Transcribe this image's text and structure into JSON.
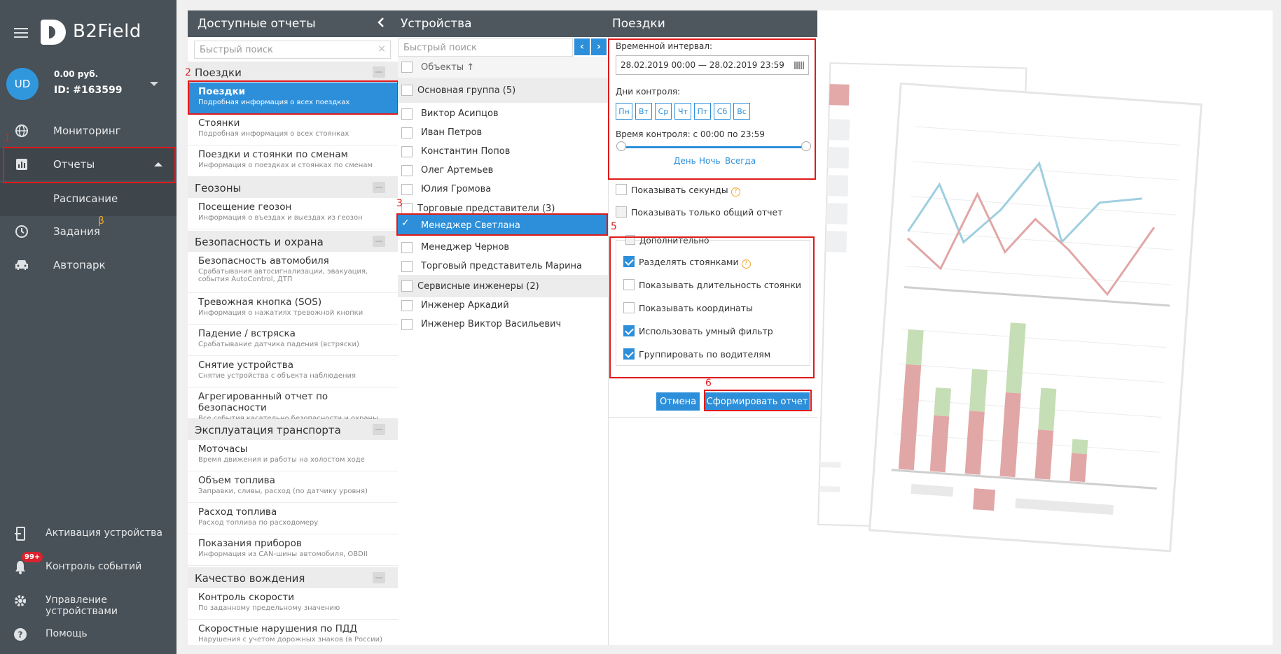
{
  "sidebar": {
    "logo": "B2Field",
    "avatar_initials": "UD",
    "balance": "0.00 руб.",
    "account_id": "ID: #163599",
    "nav": [
      {
        "label": "Мониторинг",
        "icon": "globe-icon"
      },
      {
        "label": "Отчеты",
        "icon": "bar-chart-icon"
      },
      {
        "label": "Расписание"
      },
      {
        "label": "Задания",
        "icon": "clock-icon",
        "beta": "β"
      },
      {
        "label": "Автопарк",
        "icon": "car-icon"
      }
    ],
    "bottom": [
      {
        "label": "Активация устройства",
        "icon": "device-activation-icon"
      },
      {
        "label": "Контроль событий",
        "icon": "bell-icon",
        "badge": "99+"
      },
      {
        "label": "Управление устройствами",
        "icon": "gear-icon"
      },
      {
        "label": "Помощь",
        "icon": "help-icon"
      }
    ]
  },
  "reports_panel": {
    "title": "Доступные отчеты",
    "search_placeholder": "Быстрый поиск",
    "groups": [
      {
        "title": "Поездки",
        "items": [
          {
            "title": "Поездки",
            "desc": "Подробная информация о всех поездках"
          },
          {
            "title": "Стоянки",
            "desc": "Подробная информация о всех стоянках"
          },
          {
            "title": "Поездки и стоянки по сменам",
            "desc": "Информация о поездках и стоянках по сменам"
          }
        ]
      },
      {
        "title": "Геозоны",
        "items": [
          {
            "title": "Посещение геозон",
            "desc": "Информация о въездах и выездах из геозон"
          }
        ]
      },
      {
        "title": "Безопасность и охрана",
        "items": [
          {
            "title": "Безопасность автомобиля",
            "desc": "Срабатывания автосигнализации, эвакуация,",
            "desc2": "события AutoControl, ДТП"
          },
          {
            "title": "Тревожная кнопка (SOS)",
            "desc": "Информация о нажатиях тревожной кнопки"
          },
          {
            "title": "Падение / встряска",
            "desc": "Срабатывание датчика падения (встряски)"
          },
          {
            "title": "Снятие устройства",
            "desc": "Снятие устройства с объекта наблюдения"
          },
          {
            "title": "Агрегированный отчет по безопасности",
            "desc": "Все события касательно безопасности и охраны"
          }
        ]
      },
      {
        "title": "Эксплуатация транспорта",
        "items": [
          {
            "title": "Моточасы",
            "desc": "Время движения и работы на холостом ходе"
          },
          {
            "title": "Объем топлива",
            "desc": "Заправки, сливы, расход (по датчику уровня)"
          },
          {
            "title": "Расход топлива",
            "desc": "Расход топлива по расходомеру"
          },
          {
            "title": "Показания приборов",
            "desc": "Информация из CAN-шины автомобиля, OBDII"
          }
        ]
      },
      {
        "title": "Качество вождения",
        "items": [
          {
            "title": "Контроль скорости",
            "desc": "По заданному предельному значению"
          },
          {
            "title": "Скоростные нарушения по ПДД",
            "desc": "Нарушения с учетом дорожных знаков (в России)"
          }
        ]
      }
    ]
  },
  "devices_panel": {
    "title": "Устройства",
    "search_placeholder": "Быстрый поиск",
    "prev_glyph": "‹",
    "next_glyph": "›",
    "objects_header": "Объекты ↑",
    "groups": [
      {
        "title": "Основная группа (5)",
        "items": [
          "Виктор Асипцов",
          "Иван Петров",
          "Константин Попов",
          "Олег Артемьев",
          "Юлия Громова"
        ]
      },
      {
        "title": "Торговые представители (3)",
        "items": [
          "Менеджер Светлана",
          "Менеджер Чернов",
          "Торговый представитель Марина"
        ]
      },
      {
        "title": "Сервисные инженеры (2)",
        "items": [
          "Инженер Аркадий",
          "Инженер Виктор Васильевич"
        ]
      }
    ]
  },
  "trip_panel": {
    "title": "Поездки",
    "interval_label": "Временной интервал:",
    "interval_value": "28.02.2019 00:00 — 28.02.2019 23:59",
    "days_label": "Дни контроля:",
    "days": [
      "Пн",
      "Вт",
      "Ср",
      "Чт",
      "Пт",
      "Сб",
      "Вс"
    ],
    "time_label": "Время контроля: с 00:00 по 23:59",
    "links": [
      "День",
      "Ночь",
      "Всегда"
    ],
    "show_seconds": "Показывать секунды",
    "show_total_only": "Показывать только общий отчет",
    "additional": "Дополнительно",
    "options": [
      {
        "label": "Разделять стоянками",
        "checked": true,
        "help": "?"
      },
      {
        "label": "Показывать длительность стоянки",
        "checked": false
      },
      {
        "label": "Показывать координаты",
        "checked": false
      },
      {
        "label": "Использовать умный фильтр",
        "checked": true
      },
      {
        "label": "Группировать по водителям",
        "checked": true
      }
    ],
    "help_glyph": "?",
    "cancel": "Отмена",
    "submit": "Сформировать отчет"
  },
  "annotations": [
    "1",
    "2",
    "3",
    "5",
    "6"
  ],
  "colors": {
    "accent": "#2d8fda",
    "sidebar": "#485158",
    "highlight": "#e01a1a"
  }
}
